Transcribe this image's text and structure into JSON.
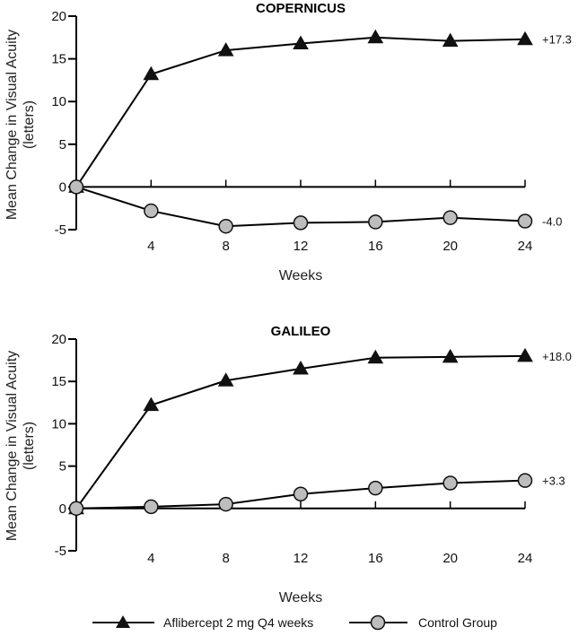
{
  "colors": {
    "series_a": "#111111",
    "series_b": "#bdbdbd",
    "axis": "#000000"
  },
  "legend": {
    "placement": "bottom",
    "entries": [
      {
        "label": "Aflibercept 2 mg Q4 weeks",
        "marker": "triangle"
      },
      {
        "label": "Control Group",
        "marker": "circle"
      }
    ]
  },
  "chart_data": [
    {
      "type": "line",
      "title": "COPERNICUS",
      "xlabel": "Weeks",
      "ylabel": "Mean Change in Visual Acuity (letters)",
      "ylabel_lines": [
        "Mean Change in Visual Acuity",
        "(letters)"
      ],
      "x": [
        0,
        4,
        8,
        12,
        16,
        20,
        24
      ],
      "x_ticks": [
        4,
        8,
        12,
        16,
        20,
        24
      ],
      "y_ticks": [
        -5,
        0,
        5,
        10,
        15,
        20
      ],
      "xlim": [
        0,
        24
      ],
      "ylim": [
        -5,
        20
      ],
      "grid": false,
      "series": [
        {
          "name": "Aflibercept 2 mg Q4 weeks",
          "marker": "triangle",
          "values": [
            0,
            13.2,
            16.0,
            16.8,
            17.5,
            17.1,
            17.3
          ],
          "end_label": "+17.3"
        },
        {
          "name": "Control Group",
          "marker": "circle",
          "values": [
            0,
            -2.8,
            -4.6,
            -4.2,
            -4.1,
            -3.6,
            -4.0
          ],
          "end_label": "-4.0"
        }
      ]
    },
    {
      "type": "line",
      "title": "GALILEO",
      "xlabel": "Weeks",
      "ylabel": "Mean Change in Visual Acuity (letters)",
      "ylabel_lines": [
        "Mean Change in Visual Acuity",
        "(letters)"
      ],
      "x": [
        0,
        4,
        8,
        12,
        16,
        20,
        24
      ],
      "x_ticks": [
        4,
        8,
        12,
        16,
        20,
        24
      ],
      "y_ticks": [
        -5,
        0,
        5,
        10,
        15,
        20
      ],
      "xlim": [
        0,
        24
      ],
      "ylim": [
        -5,
        20
      ],
      "grid": false,
      "series": [
        {
          "name": "Aflibercept 2 mg Q4 weeks",
          "marker": "triangle",
          "values": [
            0,
            12.2,
            15.1,
            16.5,
            17.8,
            17.9,
            18.0
          ],
          "end_label": "+18.0"
        },
        {
          "name": "Control Group",
          "marker": "circle",
          "values": [
            0,
            0.2,
            0.5,
            1.7,
            2.4,
            3.0,
            3.3
          ],
          "end_label": "+3.3"
        }
      ]
    }
  ]
}
